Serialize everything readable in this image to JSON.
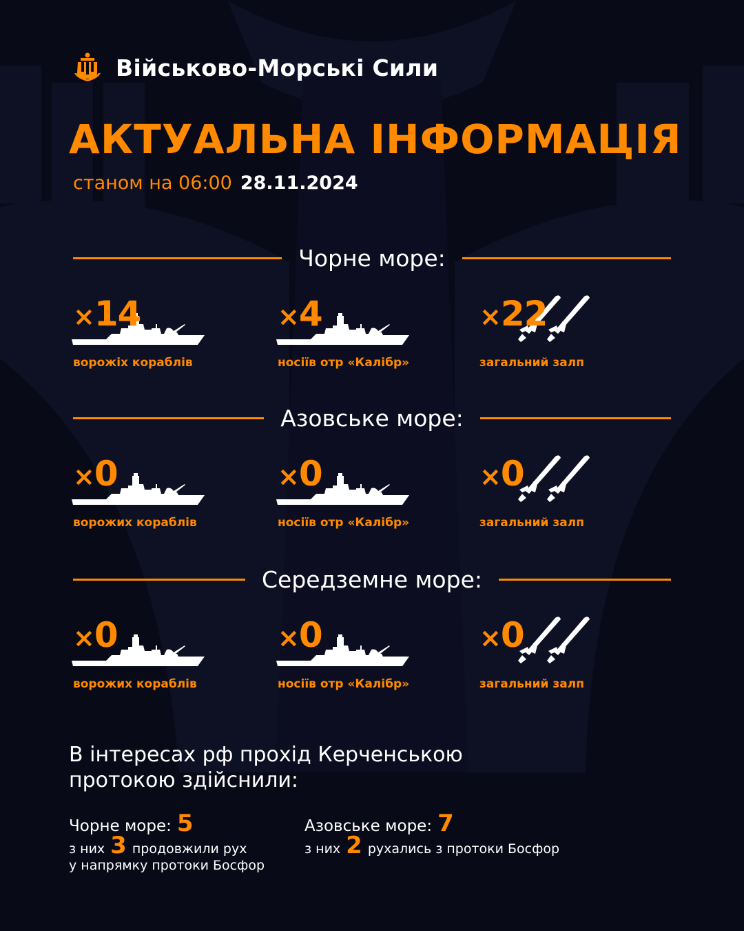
{
  "header": {
    "brand": "Військово-Морські Сили",
    "title": "АКТУАЛЬНА ІНФОРМАЦІЯ",
    "as_of_prefix": "станом на 06:00",
    "date": "28.11.2024"
  },
  "colors": {
    "accent": "#ff8a00",
    "background": "#090a18",
    "text": "#ffffff"
  },
  "seas": [
    {
      "title": "Чорне море:",
      "ships": "14",
      "ships_label": "ворожіх кораблів",
      "carriers": "4",
      "carriers_label": "носіїв отр «Калібр»",
      "salvo": "22",
      "salvo_label": "загальний залп"
    },
    {
      "title": "Азовське море:",
      "ships": "0",
      "ships_label": "ворожих кораблів",
      "carriers": "0",
      "carriers_label": "носіїв отр «Калібр»",
      "salvo": "0",
      "salvo_label": "загальний залп"
    },
    {
      "title": "Середземне море:",
      "ships": "0",
      "ships_label": "ворожих кораблів",
      "carriers": "0",
      "carriers_label": "носіїв отр «Калібр»",
      "salvo": "0",
      "salvo_label": "загальний залп"
    }
  ],
  "multiplier": "×",
  "kerch": {
    "line1": "В інтересах рф прохід Керченською",
    "line2": "протокою здійснили:",
    "black": {
      "label": "Чорне море:",
      "value": "5",
      "sub_prefix": "з них",
      "sub_value": "3",
      "sub_text1": "продовжили рух",
      "sub_text2": "у напрямку протоки Босфор"
    },
    "azov": {
      "label": "Азовське море:",
      "value": "7",
      "sub_prefix": "з них",
      "sub_value": "2",
      "sub_text1": "рухались з протоки Босфор"
    }
  },
  "icons": {
    "emblem": "navy-trident-anchor-icon",
    "ship": "warship-icon",
    "missile": "cruise-missile-icon"
  }
}
